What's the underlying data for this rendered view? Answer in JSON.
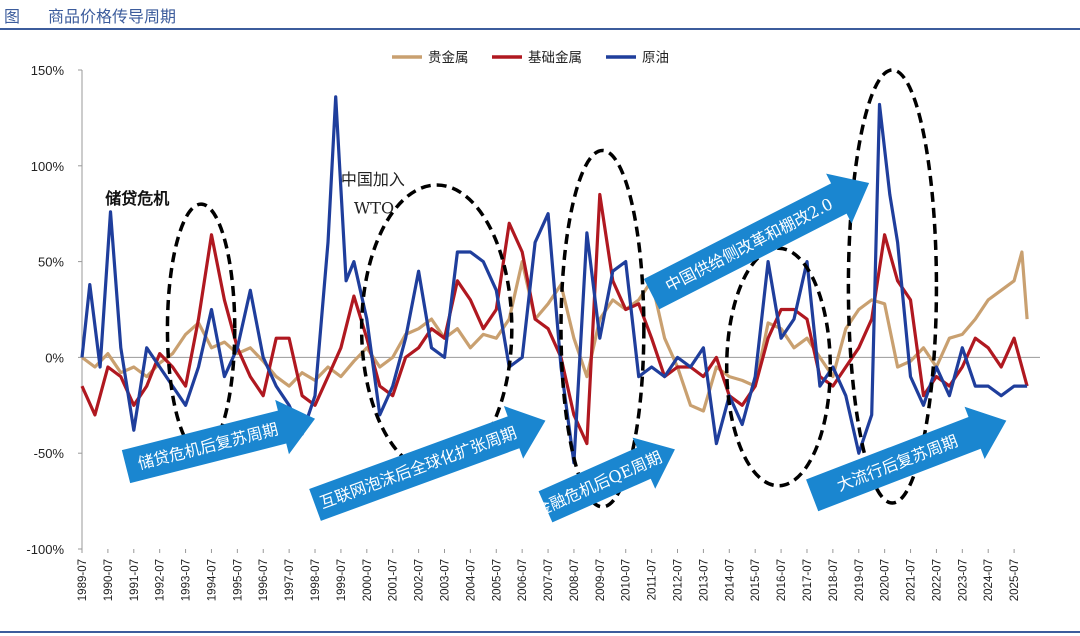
{
  "figure": {
    "label": "图",
    "title": "商品价格传导周期"
  },
  "chart_data": {
    "type": "line",
    "title": "商品价格传导周期",
    "xlabel": "",
    "ylabel": "",
    "ylim": [
      -100,
      150
    ],
    "xlim": [
      1989.5,
      2026.5
    ],
    "yticks": [
      {
        "value": 150,
        "label": "150%"
      },
      {
        "value": 100,
        "label": "100%"
      },
      {
        "value": 50,
        "label": "50%"
      },
      {
        "value": 0,
        "label": "0%"
      },
      {
        "value": -50,
        "label": "-50%"
      },
      {
        "value": -100,
        "label": "-100%"
      }
    ],
    "xticks": [
      "1989-07",
      "1990-07",
      "1991-07",
      "1992-07",
      "1993-07",
      "1994-07",
      "1995-07",
      "1996-07",
      "1997-07",
      "1998-07",
      "1999-07",
      "2000-07",
      "2001-07",
      "2002-07",
      "2003-07",
      "2004-07",
      "2005-07",
      "2006-07",
      "2007-07",
      "2008-07",
      "2009-07",
      "2010-07",
      "2011-07",
      "2012-07",
      "2013-07",
      "2014-07",
      "2015-07",
      "2016-07",
      "2017-07",
      "2018-07",
      "2019-07",
      "2020-07",
      "2021-07",
      "2022-07",
      "2023-07",
      "2024-07",
      "2025-07"
    ],
    "legend_position": "top-center",
    "series": [
      {
        "name": "贵金属",
        "color": "#c9a070",
        "points": [
          [
            1989.5,
            0
          ],
          [
            1990.0,
            -5
          ],
          [
            1990.5,
            2
          ],
          [
            1991.0,
            -8
          ],
          [
            1991.5,
            -5
          ],
          [
            1992.0,
            -10
          ],
          [
            1992.5,
            -3
          ],
          [
            1993.0,
            2
          ],
          [
            1993.5,
            12
          ],
          [
            1994.0,
            18
          ],
          [
            1994.5,
            5
          ],
          [
            1995.0,
            8
          ],
          [
            1995.5,
            2
          ],
          [
            1996.0,
            5
          ],
          [
            1996.5,
            -2
          ],
          [
            1997.0,
            -10
          ],
          [
            1997.5,
            -15
          ],
          [
            1998.0,
            -8
          ],
          [
            1998.5,
            -12
          ],
          [
            1999.0,
            -5
          ],
          [
            1999.5,
            -10
          ],
          [
            2000.0,
            -2
          ],
          [
            2000.5,
            5
          ],
          [
            2001.0,
            -5
          ],
          [
            2001.5,
            0
          ],
          [
            2002.0,
            12
          ],
          [
            2002.5,
            15
          ],
          [
            2003.0,
            20
          ],
          [
            2003.5,
            10
          ],
          [
            2004.0,
            15
          ],
          [
            2004.5,
            5
          ],
          [
            2005.0,
            12
          ],
          [
            2005.5,
            10
          ],
          [
            2006.0,
            20
          ],
          [
            2006.5,
            50
          ],
          [
            2007.0,
            20
          ],
          [
            2007.5,
            28
          ],
          [
            2008.0,
            38
          ],
          [
            2008.5,
            10
          ],
          [
            2009.0,
            -10
          ],
          [
            2009.5,
            20
          ],
          [
            2010.0,
            30
          ],
          [
            2010.5,
            25
          ],
          [
            2011.0,
            30
          ],
          [
            2011.5,
            40
          ],
          [
            2012.0,
            10
          ],
          [
            2012.5,
            -5
          ],
          [
            2013.0,
            -25
          ],
          [
            2013.5,
            -28
          ],
          [
            2014.0,
            -5
          ],
          [
            2014.5,
            -10
          ],
          [
            2015.0,
            -12
          ],
          [
            2015.5,
            -15
          ],
          [
            2016.0,
            18
          ],
          [
            2016.5,
            15
          ],
          [
            2017.0,
            5
          ],
          [
            2017.5,
            10
          ],
          [
            2018.0,
            0
          ],
          [
            2018.5,
            -10
          ],
          [
            2019.0,
            15
          ],
          [
            2019.5,
            25
          ],
          [
            2020.0,
            30
          ],
          [
            2020.5,
            28
          ],
          [
            2021.0,
            -5
          ],
          [
            2021.5,
            -2
          ],
          [
            2022.0,
            5
          ],
          [
            2022.5,
            -5
          ],
          [
            2023.0,
            10
          ],
          [
            2023.5,
            12
          ],
          [
            2024.0,
            20
          ],
          [
            2024.5,
            30
          ],
          [
            2025.0,
            35
          ],
          [
            2025.5,
            40
          ],
          [
            2025.8,
            55
          ],
          [
            2026.0,
            20
          ]
        ]
      },
      {
        "name": "基础金属",
        "color": "#b01820",
        "points": [
          [
            1989.5,
            -15
          ],
          [
            1990.0,
            -30
          ],
          [
            1990.5,
            -5
          ],
          [
            1991.0,
            -10
          ],
          [
            1991.5,
            -25
          ],
          [
            1992.0,
            -15
          ],
          [
            1992.5,
            2
          ],
          [
            1993.0,
            -5
          ],
          [
            1993.5,
            -15
          ],
          [
            1994.0,
            20
          ],
          [
            1994.5,
            64
          ],
          [
            1995.0,
            30
          ],
          [
            1995.5,
            5
          ],
          [
            1996.0,
            -10
          ],
          [
            1996.5,
            -20
          ],
          [
            1997.0,
            10
          ],
          [
            1997.5,
            10
          ],
          [
            1998.0,
            -20
          ],
          [
            1998.5,
            -25
          ],
          [
            1999.0,
            -10
          ],
          [
            1999.5,
            5
          ],
          [
            2000.0,
            32
          ],
          [
            2000.5,
            10
          ],
          [
            2001.0,
            -15
          ],
          [
            2001.5,
            -20
          ],
          [
            2002.0,
            0
          ],
          [
            2002.5,
            5
          ],
          [
            2003.0,
            15
          ],
          [
            2003.5,
            10
          ],
          [
            2004.0,
            40
          ],
          [
            2004.5,
            30
          ],
          [
            2005.0,
            15
          ],
          [
            2005.5,
            25
          ],
          [
            2006.0,
            70
          ],
          [
            2006.5,
            55
          ],
          [
            2007.0,
            20
          ],
          [
            2007.5,
            15
          ],
          [
            2008.0,
            0
          ],
          [
            2008.5,
            -30
          ],
          [
            2009.0,
            -45
          ],
          [
            2009.5,
            85
          ],
          [
            2010.0,
            40
          ],
          [
            2010.5,
            25
          ],
          [
            2011.0,
            28
          ],
          [
            2011.5,
            10
          ],
          [
            2012.0,
            -10
          ],
          [
            2012.5,
            -5
          ],
          [
            2013.0,
            -5
          ],
          [
            2013.5,
            -10
          ],
          [
            2014.0,
            0
          ],
          [
            2014.5,
            -20
          ],
          [
            2015.0,
            -25
          ],
          [
            2015.5,
            -15
          ],
          [
            2016.0,
            10
          ],
          [
            2016.5,
            25
          ],
          [
            2017.0,
            25
          ],
          [
            2017.5,
            20
          ],
          [
            2018.0,
            -10
          ],
          [
            2018.5,
            -15
          ],
          [
            2019.0,
            -5
          ],
          [
            2019.5,
            5
          ],
          [
            2020.0,
            20
          ],
          [
            2020.5,
            64
          ],
          [
            2021.0,
            40
          ],
          [
            2021.5,
            30
          ],
          [
            2022.0,
            -20
          ],
          [
            2022.5,
            -10
          ],
          [
            2023.0,
            -15
          ],
          [
            2023.5,
            -5
          ],
          [
            2024.0,
            10
          ],
          [
            2024.5,
            5
          ],
          [
            2025.0,
            -5
          ],
          [
            2025.5,
            10
          ],
          [
            2026.0,
            -15
          ]
        ]
      },
      {
        "name": "原油",
        "color": "#1f3e9c",
        "points": [
          [
            1989.5,
            0
          ],
          [
            1989.8,
            38
          ],
          [
            1990.2,
            -5
          ],
          [
            1990.6,
            76
          ],
          [
            1991.0,
            5
          ],
          [
            1991.5,
            -38
          ],
          [
            1992.0,
            5
          ],
          [
            1992.5,
            -5
          ],
          [
            1993.0,
            -15
          ],
          [
            1993.5,
            -25
          ],
          [
            1994.0,
            -5
          ],
          [
            1994.5,
            25
          ],
          [
            1995.0,
            -10
          ],
          [
            1995.5,
            5
          ],
          [
            1996.0,
            35
          ],
          [
            1996.5,
            0
          ],
          [
            1997.0,
            -15
          ],
          [
            1997.5,
            -25
          ],
          [
            1998.0,
            -40
          ],
          [
            1998.5,
            -20
          ],
          [
            1999.0,
            60
          ],
          [
            1999.3,
            136
          ],
          [
            1999.7,
            40
          ],
          [
            2000.0,
            50
          ],
          [
            2000.5,
            20
          ],
          [
            2001.0,
            -30
          ],
          [
            2001.5,
            -15
          ],
          [
            2002.0,
            10
          ],
          [
            2002.5,
            45
          ],
          [
            2003.0,
            5
          ],
          [
            2003.5,
            0
          ],
          [
            2004.0,
            55
          ],
          [
            2004.5,
            55
          ],
          [
            2005.0,
            50
          ],
          [
            2005.5,
            35
          ],
          [
            2006.0,
            -5
          ],
          [
            2006.5,
            0
          ],
          [
            2007.0,
            60
          ],
          [
            2007.5,
            75
          ],
          [
            2008.0,
            -5
          ],
          [
            2008.5,
            -55
          ],
          [
            2009.0,
            65
          ],
          [
            2009.5,
            10
          ],
          [
            2010.0,
            45
          ],
          [
            2010.5,
            50
          ],
          [
            2011.0,
            -10
          ],
          [
            2011.5,
            -5
          ],
          [
            2012.0,
            -10
          ],
          [
            2012.5,
            0
          ],
          [
            2013.0,
            -5
          ],
          [
            2013.5,
            5
          ],
          [
            2014.0,
            -45
          ],
          [
            2014.5,
            -20
          ],
          [
            2015.0,
            -35
          ],
          [
            2015.5,
            -10
          ],
          [
            2016.0,
            50
          ],
          [
            2016.5,
            10
          ],
          [
            2017.0,
            20
          ],
          [
            2017.5,
            50
          ],
          [
            2018.0,
            -15
          ],
          [
            2018.5,
            -5
          ],
          [
            2019.0,
            -20
          ],
          [
            2019.5,
            -50
          ],
          [
            2020.0,
            -30
          ],
          [
            2020.3,
            132
          ],
          [
            2020.7,
            85
          ],
          [
            2021.0,
            60
          ],
          [
            2021.5,
            -10
          ],
          [
            2022.0,
            -25
          ],
          [
            2022.5,
            -5
          ],
          [
            2023.0,
            -20
          ],
          [
            2023.5,
            5
          ],
          [
            2024.0,
            -15
          ],
          [
            2024.5,
            -15
          ],
          [
            2025.0,
            -20
          ],
          [
            2025.5,
            -15
          ],
          [
            2026.0,
            -15
          ]
        ]
      }
    ],
    "ellipses": [
      {
        "cx": 1994.1,
        "cy": 15,
        "rx": 1.3,
        "ry": 65
      },
      {
        "cx": 2003.2,
        "cy": 15,
        "rx": 2.9,
        "ry": 75
      },
      {
        "cx": 2009.6,
        "cy": 15,
        "rx": 1.6,
        "ry": 93
      },
      {
        "cx": 2016.4,
        "cy": -5,
        "rx": 2.0,
        "ry": 62
      },
      {
        "cx": 2020.8,
        "cy": 37,
        "rx": 1.7,
        "ry": 113
      }
    ],
    "annotations": [
      {
        "text": "储贷危机",
        "x": 1990.4,
        "y": 80,
        "bold": true
      },
      {
        "text": "中国加入",
        "x": 1999.5,
        "y": 90,
        "bold": false
      },
      {
        "text": "WTO",
        "x": 2000.0,
        "y": 75,
        "bold": false
      }
    ],
    "arrows": [
      {
        "text": "储贷危机后复苏周期",
        "from": [
          1991.2,
          -57
        ],
        "to": [
          1998.5,
          -32
        ]
      },
      {
        "text": "互联网泡沫后全球化扩张周期",
        "from": [
          1998.5,
          -77
        ],
        "to": [
          2007.4,
          -33
        ]
      },
      {
        "text": "金融危机后QE周期",
        "from": [
          2007.4,
          -78
        ],
        "to": [
          2012.4,
          -48
        ]
      },
      {
        "text": "中国供给侧改革和棚改2.0",
        "from": [
          2011.5,
          33
        ],
        "to": [
          2019.9,
          91
        ]
      },
      {
        "text": "大流行后复苏周期",
        "from": [
          2017.7,
          -72
        ],
        "to": [
          2025.2,
          -33
        ]
      }
    ]
  }
}
